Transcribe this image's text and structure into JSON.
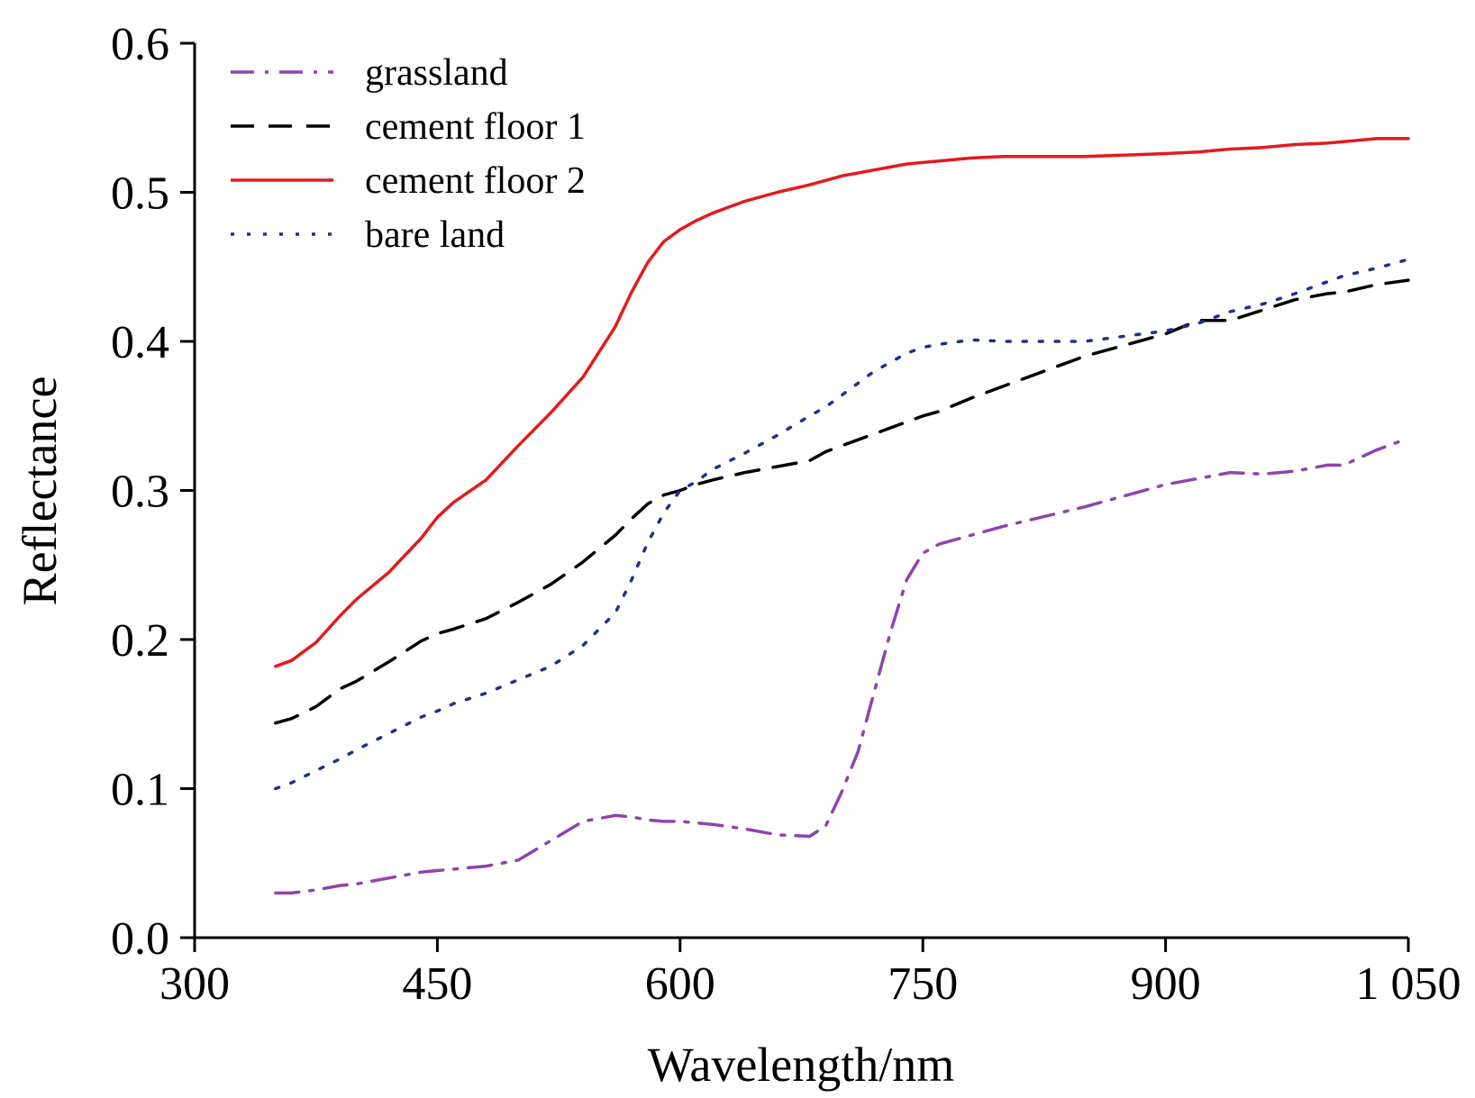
{
  "chart_data": {
    "type": "line",
    "title": "",
    "xlabel": "Wavelength/nm",
    "ylabel": "Reflectance",
    "xlim": [
      300,
      1050
    ],
    "ylim": [
      0.0,
      0.6
    ],
    "xticks": [
      300,
      450,
      600,
      750,
      900,
      1050
    ],
    "xtick_labels": [
      "300",
      "450",
      "600",
      "750",
      "900",
      "1 050"
    ],
    "yticks": [
      0.0,
      0.1,
      0.2,
      0.3,
      0.4,
      0.5,
      0.6
    ],
    "ytick_labels": [
      "0.0",
      "0.1",
      "0.2",
      "0.3",
      "0.4",
      "0.5",
      "0.6"
    ],
    "grid": false,
    "legend_position": "top-left",
    "x": [
      350,
      360,
      375,
      390,
      400,
      420,
      440,
      450,
      460,
      480,
      500,
      520,
      540,
      560,
      570,
      580,
      590,
      600,
      610,
      620,
      640,
      660,
      680,
      690,
      700,
      710,
      720,
      730,
      740,
      750,
      760,
      780,
      800,
      850,
      900,
      920,
      940,
      960,
      980,
      1000,
      1010,
      1030,
      1050
    ],
    "series": [
      {
        "name": "grassland",
        "color": "#8e44ad",
        "dash": "dashdot",
        "values": [
          0.03,
          0.03,
          0.032,
          0.035,
          0.036,
          0.04,
          0.044,
          0.045,
          0.046,
          0.048,
          0.052,
          0.065,
          0.078,
          0.082,
          0.081,
          0.079,
          0.078,
          0.078,
          0.077,
          0.076,
          0.073,
          0.069,
          0.068,
          0.075,
          0.098,
          0.125,
          0.165,
          0.205,
          0.24,
          0.258,
          0.264,
          0.27,
          0.276,
          0.289,
          0.304,
          0.308,
          0.312,
          0.311,
          0.313,
          0.317,
          0.317,
          0.327,
          0.335
        ]
      },
      {
        "name": "cement floor 1",
        "color": "#000000",
        "dash": "dash",
        "values": [
          0.144,
          0.147,
          0.155,
          0.167,
          0.172,
          0.185,
          0.199,
          0.204,
          0.207,
          0.214,
          0.225,
          0.237,
          0.252,
          0.27,
          0.281,
          0.291,
          0.297,
          0.3,
          0.304,
          0.307,
          0.312,
          0.316,
          0.32,
          0.326,
          0.33,
          0.334,
          0.338,
          0.342,
          0.346,
          0.35,
          0.353,
          0.362,
          0.37,
          0.39,
          0.405,
          0.414,
          0.414,
          0.421,
          0.428,
          0.432,
          0.433,
          0.438,
          0.441
        ]
      },
      {
        "name": "cement floor 2",
        "color": "#e31a1c",
        "dash": "solid",
        "values": [
          0.182,
          0.186,
          0.198,
          0.216,
          0.227,
          0.245,
          0.268,
          0.282,
          0.292,
          0.307,
          0.33,
          0.352,
          0.376,
          0.41,
          0.433,
          0.453,
          0.467,
          0.475,
          0.481,
          0.486,
          0.494,
          0.5,
          0.505,
          0.508,
          0.511,
          0.513,
          0.515,
          0.517,
          0.519,
          0.52,
          0.521,
          0.523,
          0.524,
          0.524,
          0.526,
          0.527,
          0.529,
          0.53,
          0.532,
          0.533,
          0.534,
          0.536,
          0.536
        ]
      },
      {
        "name": "bare land",
        "color": "#1f2f8f",
        "dash": "dot",
        "values": [
          0.1,
          0.104,
          0.112,
          0.12,
          0.126,
          0.137,
          0.148,
          0.152,
          0.157,
          0.164,
          0.173,
          0.182,
          0.196,
          0.218,
          0.24,
          0.265,
          0.285,
          0.3,
          0.306,
          0.314,
          0.325,
          0.337,
          0.35,
          0.356,
          0.364,
          0.372,
          0.38,
          0.386,
          0.392,
          0.396,
          0.398,
          0.401,
          0.4,
          0.4,
          0.407,
          0.412,
          0.42,
          0.425,
          0.432,
          0.44,
          0.444,
          0.449,
          0.455
        ]
      }
    ]
  }
}
